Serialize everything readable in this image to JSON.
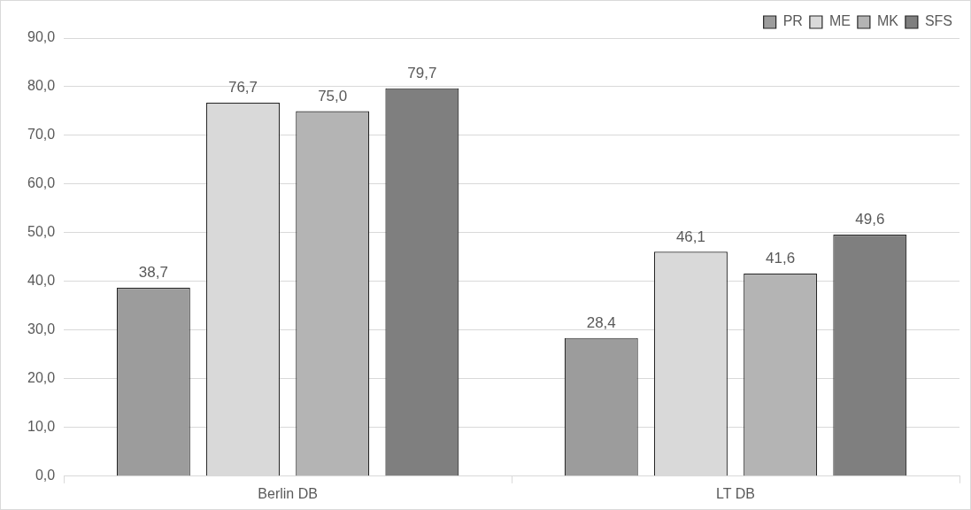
{
  "chart_data": {
    "type": "bar",
    "categories": [
      "Berlin DB",
      "LT DB"
    ],
    "series": [
      {
        "name": "PR",
        "color": "#9c9c9c",
        "values": [
          38.7,
          28.4
        ],
        "value_labels": [
          "38,7",
          "28,4"
        ]
      },
      {
        "name": "ME",
        "color": "#d9d9d9",
        "values": [
          76.7,
          46.1
        ],
        "value_labels": [
          "76,7",
          "46,1"
        ]
      },
      {
        "name": "MK",
        "color": "#b4b4b4",
        "values": [
          75.0,
          41.6
        ],
        "value_labels": [
          "75,0",
          "41,6"
        ]
      },
      {
        "name": "SFS",
        "color": "#7f7f7f",
        "values": [
          79.7,
          49.6
        ],
        "value_labels": [
          "79,7",
          "49,6"
        ]
      }
    ],
    "ylim": [
      0,
      90
    ],
    "yticks": [
      {
        "value": 0,
        "label": "0,0"
      },
      {
        "value": 10,
        "label": "10,0"
      },
      {
        "value": 20,
        "label": "20,0"
      },
      {
        "value": 30,
        "label": "30,0"
      },
      {
        "value": 40,
        "label": "40,0"
      },
      {
        "value": 50,
        "label": "50,0"
      },
      {
        "value": 60,
        "label": "60,0"
      },
      {
        "value": 70,
        "label": "70,0"
      },
      {
        "value": 80,
        "label": "80,0"
      },
      {
        "value": 90,
        "label": "90,0"
      }
    ],
    "grid": "y",
    "legend": "top right"
  }
}
